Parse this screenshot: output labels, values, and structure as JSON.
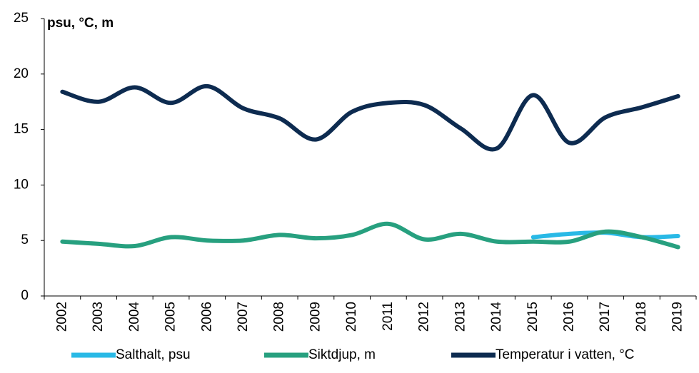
{
  "chart_data": {
    "type": "line",
    "y_label": "psu, °C, m",
    "categories": [
      "2002",
      "2003",
      "2004",
      "2005",
      "2006",
      "2007",
      "2008",
      "2009",
      "2010",
      "2011",
      "2012",
      "2013",
      "2014",
      "2015",
      "2016",
      "2017",
      "2018",
      "2019"
    ],
    "series": [
      {
        "name": "Salthalt, psu",
        "color": "#29b9e6",
        "values": [
          null,
          null,
          null,
          null,
          null,
          null,
          null,
          null,
          null,
          null,
          null,
          null,
          null,
          5.3,
          5.6,
          5.7,
          5.3,
          5.4
        ]
      },
      {
        "name": "Siktdjup, m",
        "color": "#27a07f",
        "values": [
          4.9,
          4.7,
          4.5,
          5.3,
          5.0,
          5.0,
          5.5,
          5.2,
          5.5,
          6.5,
          5.1,
          5.6,
          4.9,
          4.9,
          4.9,
          5.8,
          5.3,
          4.4
        ]
      },
      {
        "name": "Temperatur i vatten, °C",
        "color": "#0d2b50",
        "values": [
          18.4,
          17.5,
          18.8,
          17.4,
          18.9,
          16.9,
          16.0,
          14.1,
          16.6,
          17.4,
          17.2,
          15.1,
          13.3,
          18.1,
          13.8,
          16.1,
          17.0,
          18.0
        ]
      }
    ],
    "ylim": [
      0,
      25
    ],
    "yticks": [
      0,
      5,
      10,
      15,
      20,
      25
    ],
    "grid": false
  }
}
